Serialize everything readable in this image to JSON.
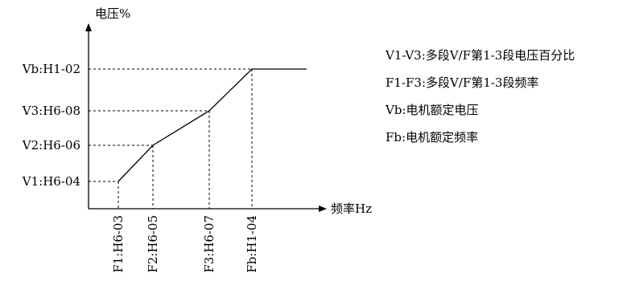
{
  "y_axis_label": "电压%",
  "x_axis_label": "频率Hz",
  "y_levels": [
    {
      "id": "vb",
      "label": "Vb:H1-02"
    },
    {
      "id": "v3",
      "label": "V3:H6-08"
    },
    {
      "id": "v2",
      "label": "V2:H6-06"
    },
    {
      "id": "v1",
      "label": "V1:H6-04"
    }
  ],
  "x_points": [
    {
      "id": "f1",
      "label": "F1:H6-03"
    },
    {
      "id": "f2",
      "label": "F2:H6-05"
    },
    {
      "id": "f3",
      "label": "F3:H6-07"
    },
    {
      "id": "fb",
      "label": "Fb:H1-04"
    }
  ],
  "legend": [
    "V1-V3:多段V/F第1-3段电压百分比",
    "F1-F3:多段V/F第1-3段频率",
    "Vb:电机额定电压",
    "Fb:电机额定频率"
  ]
}
